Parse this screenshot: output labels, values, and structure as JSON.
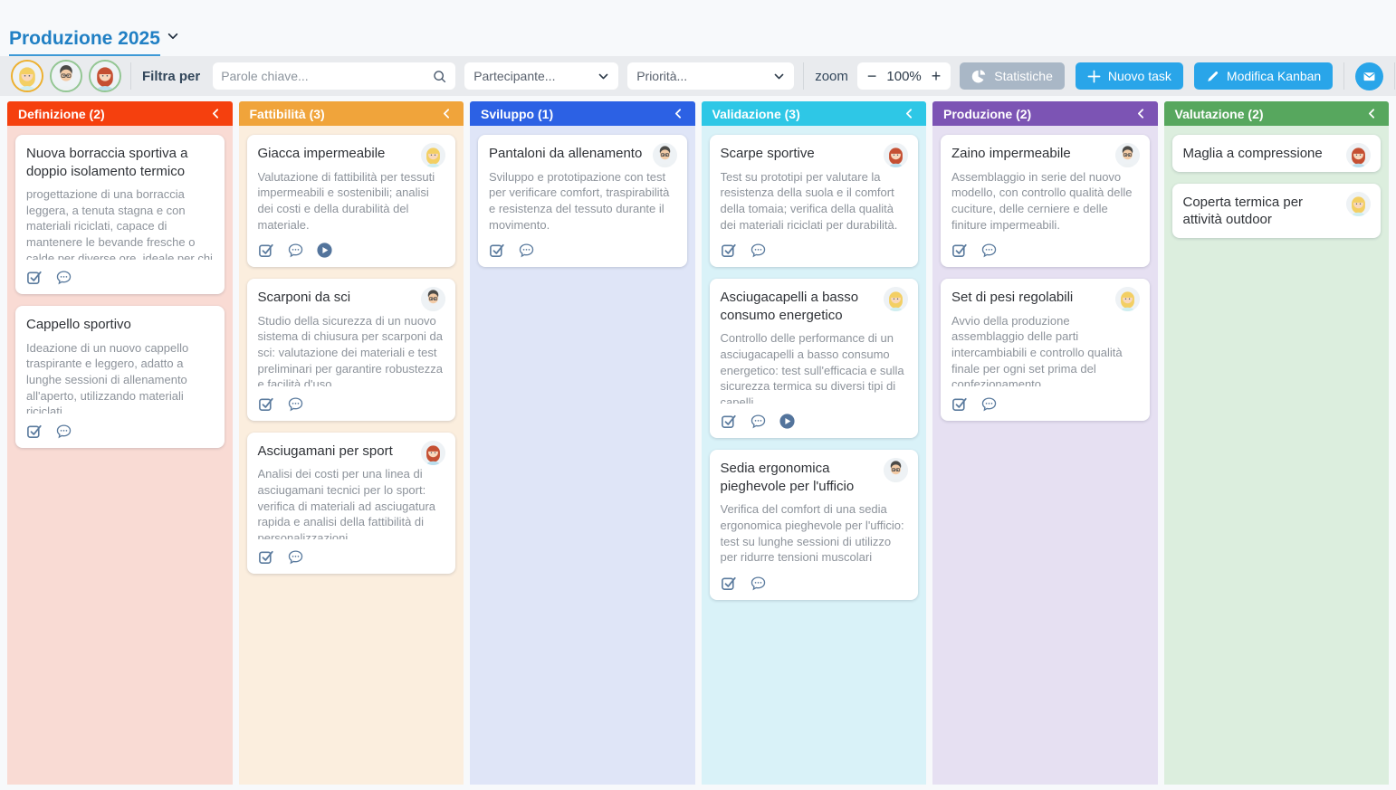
{
  "page": {
    "title": "Produzione 2025"
  },
  "toolbar": {
    "filter_label": "Filtra per",
    "search": {
      "placeholder": "Parole chiave..."
    },
    "participant_filter": {
      "placeholder": "Partecipante..."
    },
    "priority_filter": {
      "placeholder": "Priorità..."
    },
    "zoom": {
      "label": "zoom",
      "value": "100%",
      "minus": "−",
      "plus": "+"
    },
    "buttons": {
      "statistics": "Statistiche",
      "new_task": "Nuovo task",
      "edit_kanban": "Modifica Kanban"
    },
    "members": [
      {
        "id": "blonde",
        "name": "blonde-woman",
        "ring": "#edb02f"
      },
      {
        "id": "man",
        "name": "man-with-glasses",
        "ring": "#93c693"
      },
      {
        "id": "redhead",
        "name": "red-haired-woman",
        "ring": "#93c693"
      }
    ]
  },
  "colors": {
    "accent_blue": "#29a5e9",
    "statistics_gray": "#a9b7c6",
    "title_blue": "#2180c4",
    "card_icon_slate": "#5b7b9e"
  },
  "board": {
    "columns": [
      {
        "label": "Definizione (2)",
        "header_color": "#f5400e",
        "body_color": "#f9dbd4",
        "cards": [
          {
            "title": "Nuova borraccia sportiva a doppio isolamento termico",
            "description": "progettazione di una borraccia leggera, a tenuta stagna e con materiali riciclati, capace di mantenere le bevande fresche o calde per diverse ore, ideale per chi pratica sport",
            "assignee": null,
            "badges": [
              "checklist",
              "comments"
            ]
          },
          {
            "title": "Cappello sportivo",
            "description": "Ideazione di un nuovo cappello traspirante e leggero, adatto a lunghe sessioni di allenamento all'aperto, utilizzando materiali riciclati.",
            "assignee": null,
            "badges": [
              "checklist",
              "comments"
            ]
          }
        ]
      },
      {
        "label": "Fattibilità (3)",
        "header_color": "#f0a43b",
        "body_color": "#fbeede",
        "cards": [
          {
            "title": "Giacca impermeabile",
            "description": "Valutazione di fattibilità per tessuti impermeabili e sostenibili; analisi dei costi e della durabilità del materiale.",
            "assignee": "blonde",
            "badges": [
              "checklist",
              "comments",
              "play"
            ]
          },
          {
            "title": "Scarponi da sci",
            "description": "Studio della sicurezza di un nuovo sistema di chiusura per scarponi da sci: valutazione dei materiali e test preliminari per garantire robustezza e facilità d'uso.",
            "assignee": "man",
            "badges": [
              "checklist",
              "comments"
            ]
          },
          {
            "title": "Asciugamani per sport",
            "description": "Analisi dei costi per una linea di asciugamani tecnici per lo sport: verifica di materiali ad asciugatura rapida e analisi della fattibilità di personalizzazioni.",
            "assignee": "redhead",
            "badges": [
              "checklist",
              "comments"
            ]
          }
        ]
      },
      {
        "label": "Sviluppo (1)",
        "header_color": "#2c61e4",
        "body_color": "#dfe5f7",
        "cards": [
          {
            "title": "Pantaloni da allenamento",
            "description": "Sviluppo e prototipazione con test per verificare comfort, traspirabilità e resistenza del tessuto durante il movimento.",
            "assignee": "man",
            "badges": [
              "checklist",
              "comments"
            ]
          }
        ]
      },
      {
        "label": "Validazione (3)",
        "header_color": "#2ec7e6",
        "body_color": "#d9f2f8",
        "cards": [
          {
            "title": "Scarpe sportive",
            "description": "Test su prototipi per valutare la resistenza della suola e il comfort della tomaia; verifica della qualità dei materiali riciclati per durabilità.",
            "assignee": "redhead",
            "badges": [
              "checklist",
              "comments"
            ]
          },
          {
            "title": "Asciugacapelli a basso consumo energetico",
            "description": "Controllo delle performance di un asciugacapelli a basso consumo energetico: test sull'efficacia e sulla sicurezza termica su diversi tipi di capelli.",
            "assignee": "blonde",
            "badges": [
              "checklist",
              "comments",
              "play"
            ]
          },
          {
            "title": "Sedia ergonomica pieghevole per l'ufficio",
            "description": "Verifica del comfort di una sedia ergonomica pieghevole per l'ufficio: test su lunghe sessioni di utilizzo per ridurre tensioni muscolari",
            "assignee": "man",
            "badges": [
              "checklist",
              "comments"
            ]
          }
        ]
      },
      {
        "label": "Produzione (2)",
        "header_color": "#7c54b4",
        "body_color": "#e6e0f2",
        "cards": [
          {
            "title": "Zaino impermeabile",
            "description": "Assemblaggio in serie del nuovo modello, con controllo qualità delle cuciture, delle cerniere e delle finiture impermeabili.",
            "assignee": "man",
            "badges": [
              "checklist",
              "comments"
            ]
          },
          {
            "title": "Set di pesi regolabili",
            "description": "Avvio della produzione assemblaggio delle parti intercambiabili e controllo qualità finale per ogni set prima del confezionamento.",
            "assignee": "blonde",
            "badges": [
              "checklist",
              "comments"
            ]
          }
        ]
      },
      {
        "label": "Valutazione (2)",
        "header_color": "#57a75e",
        "body_color": "#dceede",
        "cards": [
          {
            "title": "Maglia a compressione",
            "description": null,
            "assignee": "redhead",
            "badges": []
          },
          {
            "title": "Coperta termica per attività outdoor",
            "description": null,
            "assignee": "blonde",
            "badges": []
          }
        ]
      }
    ]
  }
}
